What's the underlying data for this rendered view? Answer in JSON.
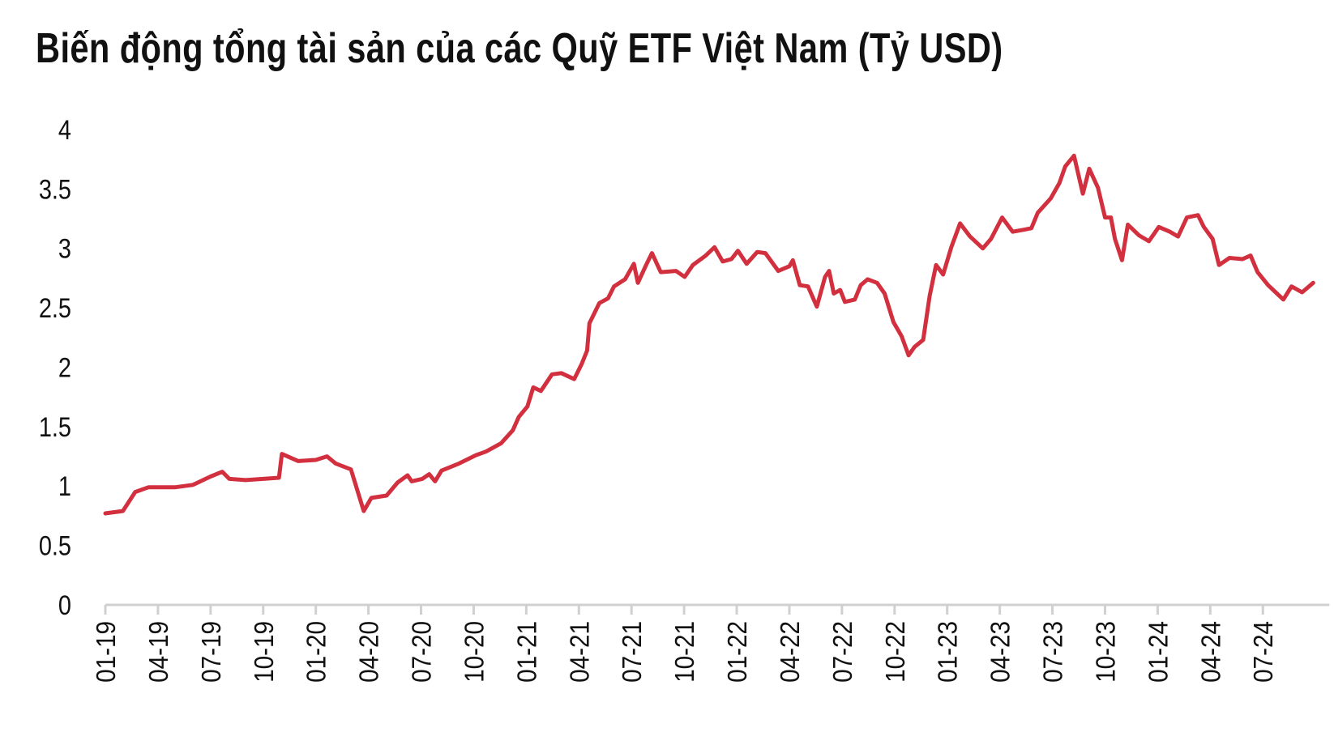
{
  "chart_data": {
    "type": "line",
    "title": "Biến động tổng tài sản của các Quỹ ETF Việt Nam (Tỷ USD)",
    "xlabel": "",
    "ylabel": "",
    "ylim": [
      0,
      4
    ],
    "yticks": [
      "0",
      "0.5",
      "1",
      "1.5",
      "2",
      "2.5",
      "3",
      "3.5",
      "4"
    ],
    "xticks": [
      "01-19",
      "04-19",
      "07-19",
      "10-19",
      "01-20",
      "04-20",
      "07-20",
      "10-20",
      "01-21",
      "04-21",
      "07-21",
      "10-21",
      "01-22",
      "04-22",
      "07-22",
      "10-22",
      "01-23",
      "04-23",
      "07-23",
      "10-23",
      "01-24",
      "04-24",
      "07-24"
    ],
    "grid": false,
    "line_color": "#d2303f",
    "series": [
      {
        "points": [
          [
            "2019-01-01",
            0.77
          ],
          [
            "2019-02-01",
            0.79
          ],
          [
            "2019-02-22",
            0.95
          ],
          [
            "2019-03-15",
            0.99
          ],
          [
            "2019-04-01",
            0.99
          ],
          [
            "2019-05-01",
            0.99
          ],
          [
            "2019-06-01",
            1.01
          ],
          [
            "2019-07-01",
            1.08
          ],
          [
            "2019-07-21",
            1.12
          ],
          [
            "2019-08-03",
            1.06
          ],
          [
            "2019-09-01",
            1.05
          ],
          [
            "2019-10-01",
            1.06
          ],
          [
            "2019-10-28",
            1.07
          ],
          [
            "2019-11-03",
            1.27
          ],
          [
            "2019-12-01",
            1.21
          ],
          [
            "2020-01-01",
            1.22
          ],
          [
            "2020-01-20",
            1.25
          ],
          [
            "2020-02-05",
            1.19
          ],
          [
            "2020-03-01",
            1.14
          ],
          [
            "2020-03-23",
            0.79
          ],
          [
            "2020-04-06",
            0.9
          ],
          [
            "2020-05-02",
            0.92
          ],
          [
            "2020-05-21",
            1.03
          ],
          [
            "2020-06-08",
            1.09
          ],
          [
            "2020-06-15",
            1.04
          ],
          [
            "2020-07-03",
            1.06
          ],
          [
            "2020-07-15",
            1.1
          ],
          [
            "2020-07-25",
            1.04
          ],
          [
            "2020-08-06",
            1.13
          ],
          [
            "2020-09-06",
            1.19
          ],
          [
            "2020-10-05",
            1.26
          ],
          [
            "2020-10-22",
            1.29
          ],
          [
            "2020-11-18",
            1.36
          ],
          [
            "2020-12-08",
            1.47
          ],
          [
            "2020-12-18",
            1.58
          ],
          [
            "2021-01-03",
            1.67
          ],
          [
            "2021-01-13",
            1.83
          ],
          [
            "2021-01-26",
            1.8
          ],
          [
            "2021-02-15",
            1.94
          ],
          [
            "2021-03-01",
            1.95
          ],
          [
            "2021-03-23",
            1.9
          ],
          [
            "2021-04-06",
            2.03
          ],
          [
            "2021-04-15",
            2.14
          ],
          [
            "2021-04-19",
            2.37
          ],
          [
            "2021-05-06",
            2.54
          ],
          [
            "2021-05-21",
            2.58
          ],
          [
            "2021-06-01",
            2.68
          ],
          [
            "2021-06-20",
            2.74
          ],
          [
            "2021-07-05",
            2.87
          ],
          [
            "2021-07-12",
            2.71
          ],
          [
            "2021-07-26",
            2.86
          ],
          [
            "2021-08-06",
            2.96
          ],
          [
            "2021-08-21",
            2.8
          ],
          [
            "2021-09-17",
            2.81
          ],
          [
            "2021-10-02",
            2.76
          ],
          [
            "2021-10-16",
            2.86
          ],
          [
            "2021-11-08",
            2.94
          ],
          [
            "2021-11-23",
            3.01
          ],
          [
            "2021-12-07",
            2.89
          ],
          [
            "2021-12-22",
            2.91
          ],
          [
            "2022-01-03",
            2.98
          ],
          [
            "2022-01-18",
            2.87
          ],
          [
            "2022-02-06",
            2.97
          ],
          [
            "2022-02-20",
            2.96
          ],
          [
            "2022-03-12",
            2.81
          ],
          [
            "2022-04-01",
            2.85
          ],
          [
            "2022-04-07",
            2.9
          ],
          [
            "2022-04-19",
            2.69
          ],
          [
            "2022-05-03",
            2.68
          ],
          [
            "2022-05-18",
            2.51
          ],
          [
            "2022-06-02",
            2.76
          ],
          [
            "2022-06-09",
            2.81
          ],
          [
            "2022-06-17",
            2.62
          ],
          [
            "2022-06-28",
            2.65
          ],
          [
            "2022-07-06",
            2.55
          ],
          [
            "2022-07-23",
            2.57
          ],
          [
            "2022-08-03",
            2.69
          ],
          [
            "2022-08-15",
            2.74
          ],
          [
            "2022-09-01",
            2.71
          ],
          [
            "2022-09-14",
            2.62
          ],
          [
            "2022-09-29",
            2.38
          ],
          [
            "2022-10-13",
            2.26
          ],
          [
            "2022-10-25",
            2.1
          ],
          [
            "2022-11-05",
            2.17
          ],
          [
            "2022-11-20",
            2.23
          ],
          [
            "2022-12-01",
            2.6
          ],
          [
            "2022-12-12",
            2.86
          ],
          [
            "2022-12-24",
            2.78
          ],
          [
            "2023-01-08",
            3.01
          ],
          [
            "2023-01-23",
            3.21
          ],
          [
            "2023-02-10",
            3.1
          ],
          [
            "2023-03-02",
            3.0
          ],
          [
            "2023-03-16",
            3.08
          ],
          [
            "2023-04-05",
            3.26
          ],
          [
            "2023-04-23",
            3.14
          ],
          [
            "2023-05-15",
            3.16
          ],
          [
            "2023-05-25",
            3.17
          ],
          [
            "2023-06-06",
            3.3
          ],
          [
            "2023-06-28",
            3.42
          ],
          [
            "2023-07-13",
            3.55
          ],
          [
            "2023-07-23",
            3.69
          ],
          [
            "2023-08-08",
            3.78
          ],
          [
            "2023-08-23",
            3.46
          ],
          [
            "2023-09-04",
            3.67
          ],
          [
            "2023-09-19",
            3.51
          ],
          [
            "2023-10-01",
            3.26
          ],
          [
            "2023-10-11",
            3.26
          ],
          [
            "2023-10-18",
            3.08
          ],
          [
            "2023-10-30",
            2.9
          ],
          [
            "2023-11-10",
            3.2
          ],
          [
            "2023-11-29",
            3.11
          ],
          [
            "2023-12-16",
            3.06
          ],
          [
            "2024-01-03",
            3.18
          ],
          [
            "2024-01-22",
            3.14
          ],
          [
            "2024-02-06",
            3.1
          ],
          [
            "2024-02-21",
            3.26
          ],
          [
            "2024-03-10",
            3.28
          ],
          [
            "2024-03-20",
            3.18
          ],
          [
            "2024-04-05",
            3.08
          ],
          [
            "2024-04-16",
            2.86
          ],
          [
            "2024-05-04",
            2.92
          ],
          [
            "2024-05-26",
            2.91
          ],
          [
            "2024-06-10",
            2.94
          ],
          [
            "2024-06-22",
            2.8
          ],
          [
            "2024-07-10",
            2.69
          ],
          [
            "2024-07-25",
            2.62
          ],
          [
            "2024-08-06",
            2.57
          ],
          [
            "2024-08-20",
            2.68
          ],
          [
            "2024-09-08",
            2.63
          ],
          [
            "2024-09-27",
            2.71
          ]
        ]
      }
    ]
  }
}
